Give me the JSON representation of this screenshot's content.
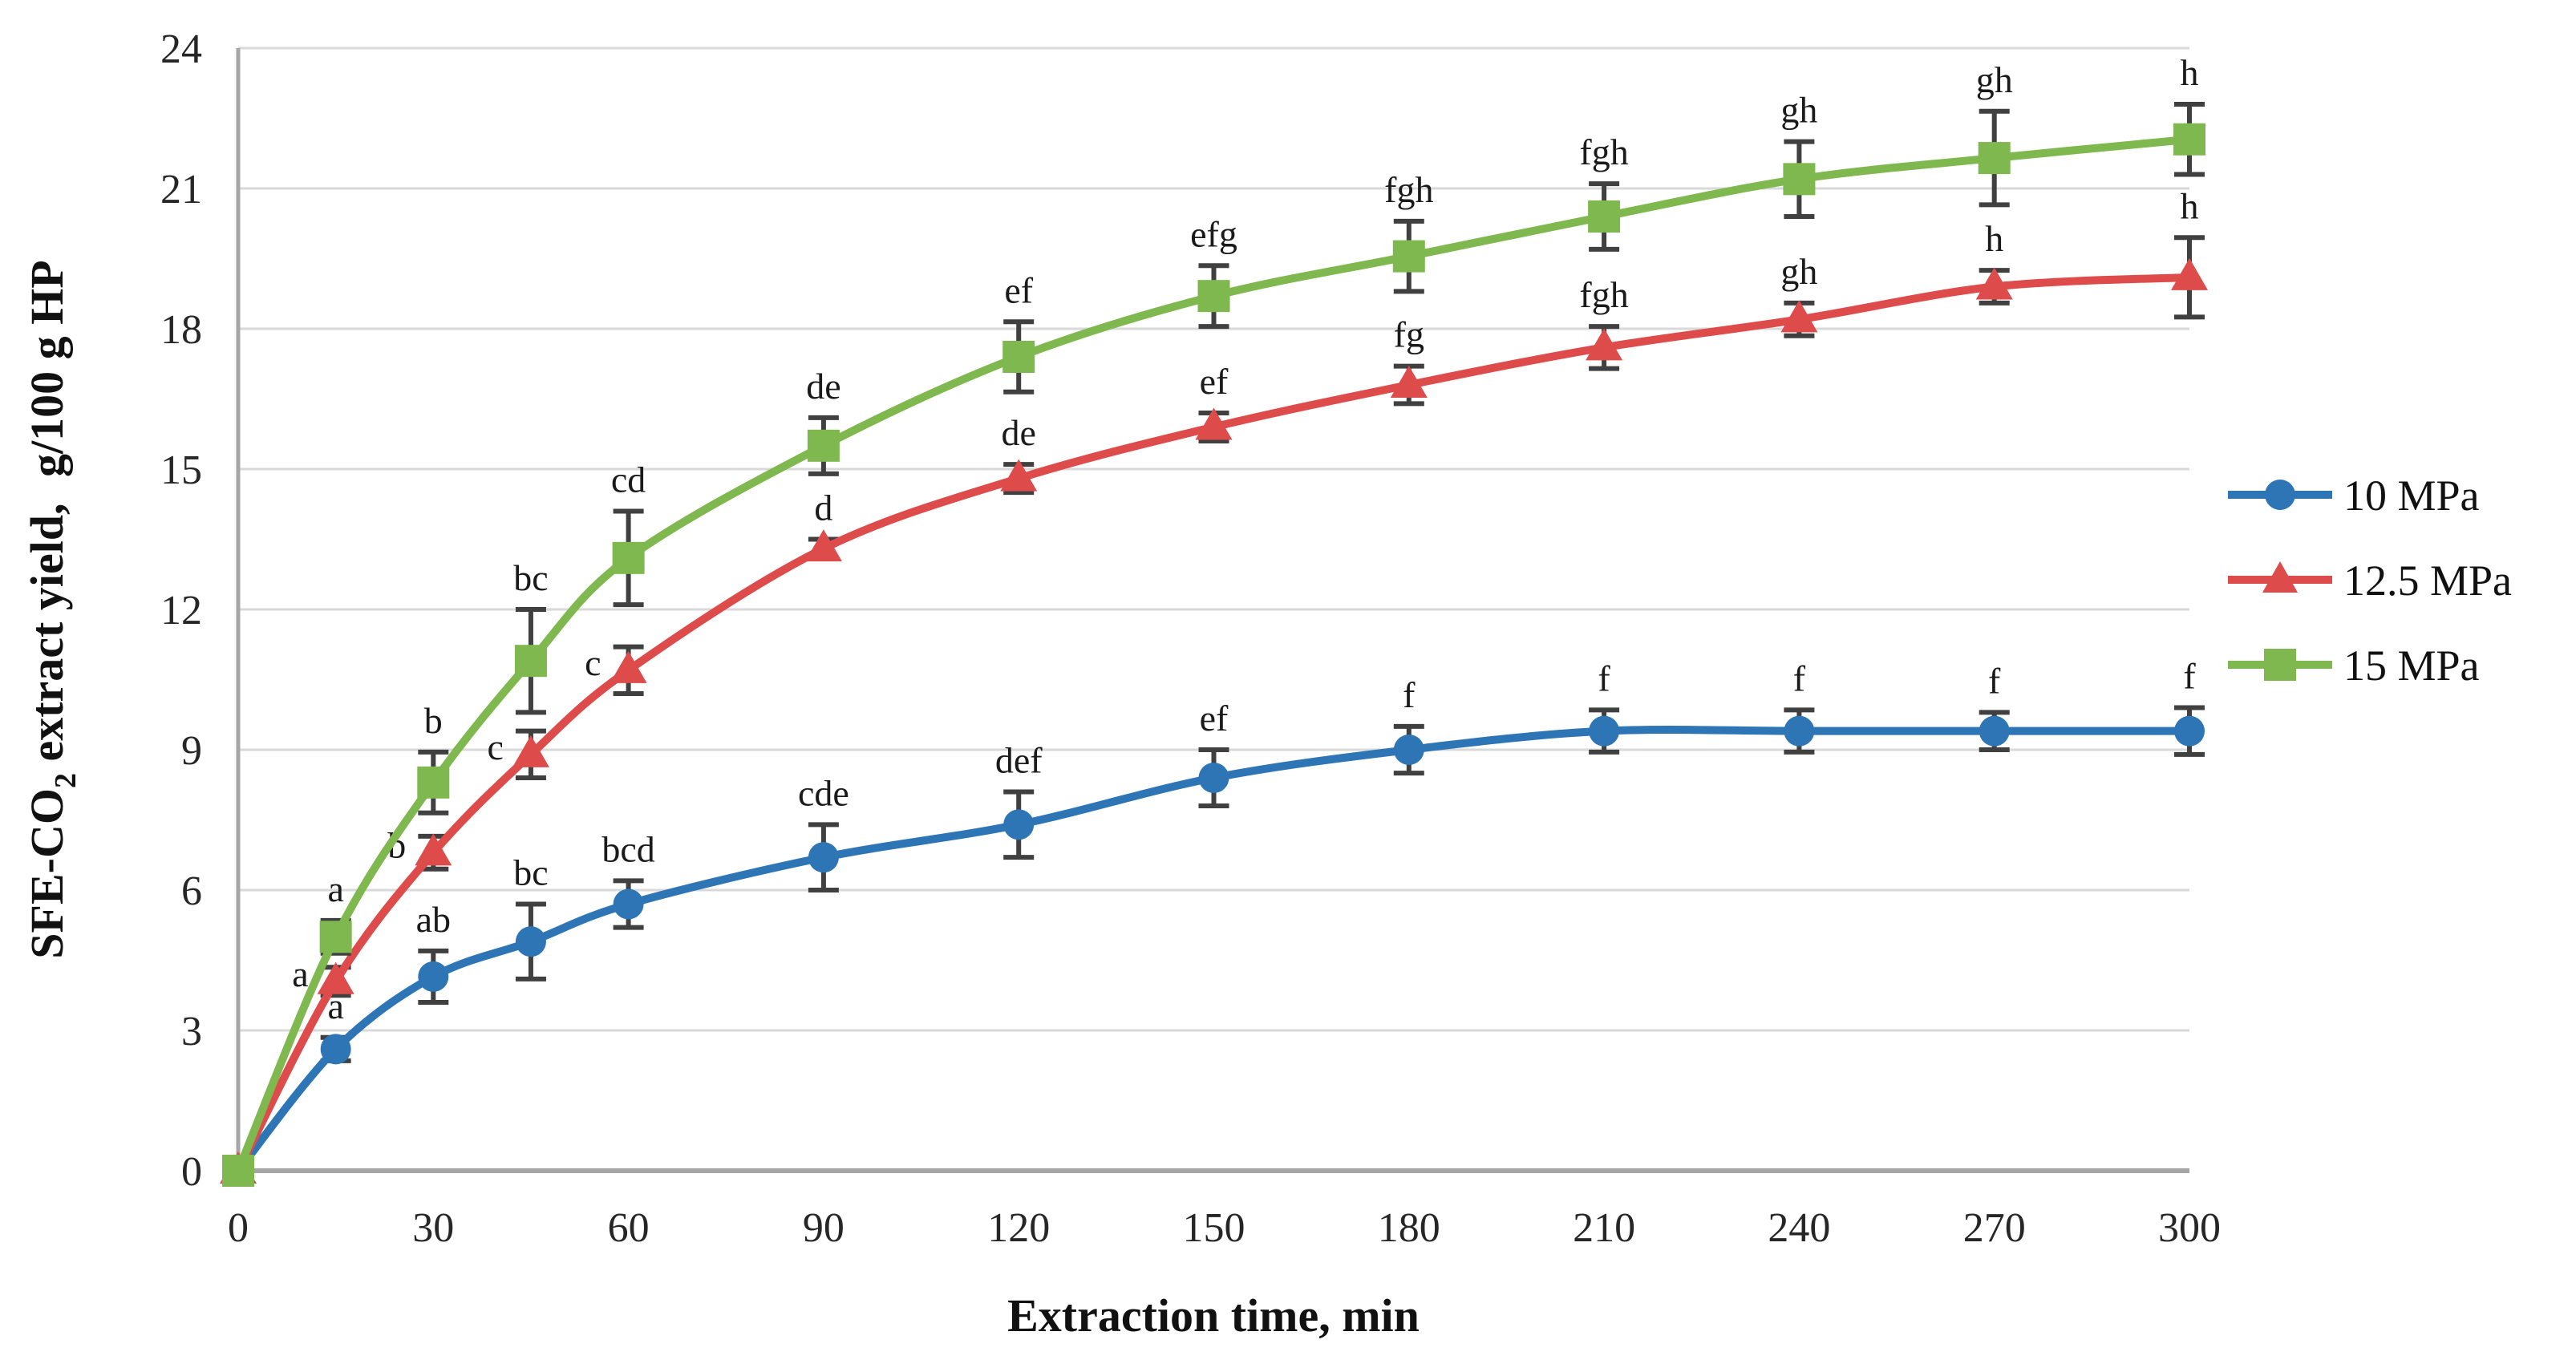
{
  "chart_data": {
    "type": "line",
    "title": "",
    "xlabel": "Extraction time, min",
    "ylabel": "SFE-CO2 extract yield, g/100 g HP",
    "ylabel_parts": {
      "pre": "SFE-CO",
      "sub": "2",
      "mid": " extract yield, ",
      "post": "g/100 g HP"
    },
    "xlim": [
      0,
      300
    ],
    "ylim": [
      0,
      24
    ],
    "x_ticks": [
      0,
      30,
      60,
      90,
      120,
      150,
      180,
      210,
      240,
      270,
      300
    ],
    "y_ticks": [
      0,
      3,
      6,
      9,
      12,
      15,
      18,
      21,
      24
    ],
    "grid": "horizontal",
    "legend_position": "right",
    "x": [
      0,
      15,
      30,
      45,
      60,
      90,
      120,
      150,
      180,
      210,
      240,
      270,
      300
    ],
    "series": [
      {
        "name": "10 MPa",
        "color": "#2E75B6",
        "label_color": "#2763A5",
        "marker": "circle",
        "values": [
          0,
          2.6,
          4.15,
          4.9,
          5.7,
          6.7,
          7.4,
          8.4,
          9.0,
          9.4,
          9.4,
          9.4,
          9.4
        ],
        "errors": [
          0,
          0.25,
          0.55,
          0.8,
          0.5,
          0.7,
          0.7,
          0.6,
          0.5,
          0.45,
          0.45,
          0.4,
          0.5
        ],
        "point_labels": [
          "",
          "a",
          "ab",
          "bc",
          "bcd",
          "cde",
          "def",
          "ef",
          "f",
          "f",
          "f",
          "f",
          "f"
        ],
        "label_side": [
          "",
          "above",
          "above",
          "above",
          "above",
          "above",
          "above",
          "above",
          "above",
          "above",
          "above",
          "above",
          "above"
        ]
      },
      {
        "name": "12.5 MPa",
        "color": "#DD4B4B",
        "label_color": "#E25A5A",
        "marker": "triangle",
        "values": [
          0,
          4.05,
          6.8,
          8.9,
          10.7,
          13.3,
          14.8,
          15.9,
          16.8,
          17.6,
          18.2,
          18.9,
          19.1
        ],
        "errors": [
          0,
          0.3,
          0.35,
          0.5,
          0.5,
          0.2,
          0.3,
          0.3,
          0.4,
          0.45,
          0.35,
          0.35,
          0.85
        ],
        "point_labels": [
          "",
          "a",
          "b",
          "c",
          "c",
          "d",
          "de",
          "ef",
          "fg",
          "fgh",
          "gh",
          "h",
          "h"
        ],
        "label_side": [
          "",
          "left",
          "left",
          "left",
          "left",
          "above",
          "above",
          "above",
          "above",
          "above",
          "above",
          "above",
          "above"
        ]
      },
      {
        "name": "15 MPa",
        "color": "#7FB84E",
        "label_color": "#85BC55",
        "marker": "square",
        "values": [
          0,
          5.0,
          8.3,
          10.9,
          13.1,
          15.5,
          17.4,
          18.7,
          19.55,
          20.4,
          21.2,
          21.65,
          22.05
        ],
        "errors": [
          0,
          0.35,
          0.65,
          1.1,
          1.0,
          0.6,
          0.75,
          0.65,
          0.75,
          0.7,
          0.8,
          1.0,
          0.75
        ],
        "point_labels": [
          "",
          "a",
          "b",
          "bc",
          "cd",
          "de",
          "ef",
          "efg",
          "fgh",
          "fgh",
          "gh",
          "gh",
          "h"
        ],
        "label_side": [
          "",
          "above",
          "above",
          "above",
          "above",
          "above",
          "above",
          "above",
          "above",
          "above",
          "above",
          "above",
          "above"
        ]
      }
    ],
    "colors": {
      "gridline": "#D9D9D9",
      "axis_line": "#A6A6A6",
      "error_bar": "#404040",
      "text": "#1A1A1A"
    }
  }
}
